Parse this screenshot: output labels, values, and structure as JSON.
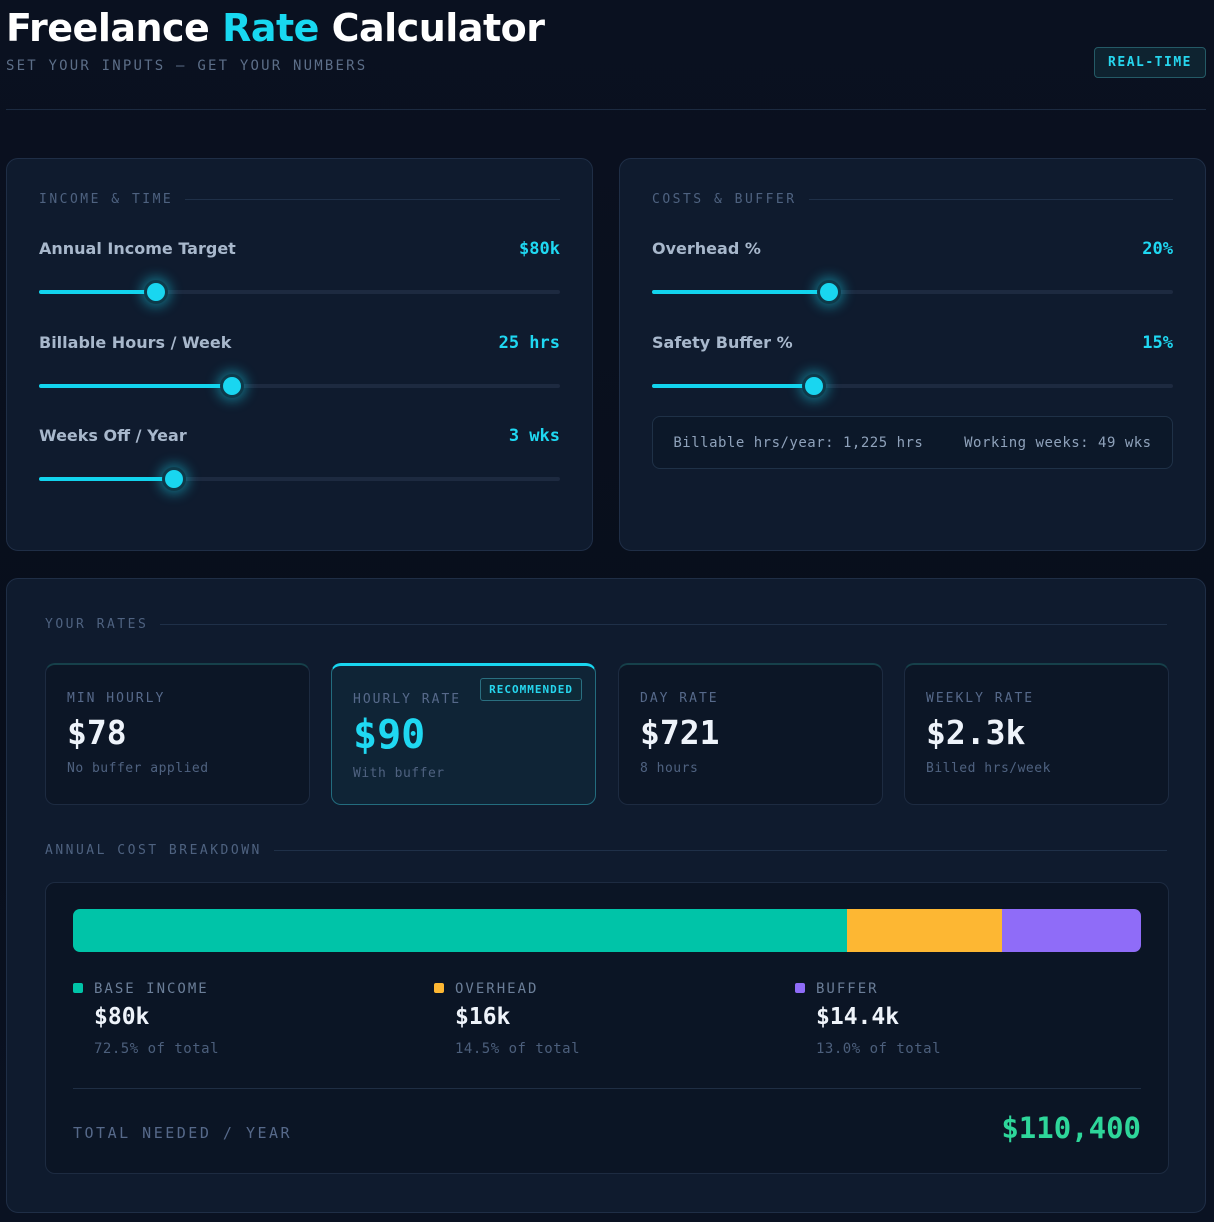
{
  "header": {
    "title_part1": "Freelance",
    "title_accent": "Rate",
    "title_part2": "Calculator",
    "subtitle": "SET YOUR INPUTS — GET YOUR NUMBERS",
    "badge": "REAL-TIME"
  },
  "income_panel": {
    "section_label": "INCOME & TIME",
    "sliders": [
      {
        "label": "Annual Income Target",
        "value": "$80k",
        "fill_fraction": 0.225
      },
      {
        "label": "Billable Hours / Week",
        "value": "25 hrs",
        "fill_fraction": 0.37
      },
      {
        "label": "Weeks Off / Year",
        "value": "3 wks",
        "fill_fraction": 0.26
      }
    ]
  },
  "costs_panel": {
    "section_label": "COSTS & BUFFER",
    "sliders": [
      {
        "label": "Overhead %",
        "value": "20%",
        "fill_fraction": 0.34
      },
      {
        "label": "Safety Buffer %",
        "value": "15%",
        "fill_fraction": 0.31
      }
    ],
    "stats": {
      "billable_hours": "Billable hrs/year: 1,225 hrs",
      "working_weeks": "Working weeks: 49 wks"
    }
  },
  "rates_panel": {
    "section_label": "YOUR RATES",
    "cards": [
      {
        "label": "MIN HOURLY",
        "value": "$78",
        "sub": "No buffer applied"
      },
      {
        "label": "HOURLY RATE",
        "value": "$90",
        "sub": "With buffer",
        "badge": "RECOMMENDED"
      },
      {
        "label": "DAY RATE",
        "value": "$721",
        "sub": "8 hours"
      },
      {
        "label": "WEEKLY RATE",
        "value": "$2.3k",
        "sub": "Billed hrs/week"
      }
    ],
    "breakdown_label": "ANNUAL COST BREAKDOWN",
    "breakdown": [
      {
        "name": "BASE INCOME",
        "amount": "$80k",
        "pct_text": "72.5% of total",
        "share": 72.5,
        "color": "#00c4a8"
      },
      {
        "name": "OVERHEAD",
        "amount": "$16k",
        "pct_text": "14.5% of total",
        "share": 14.5,
        "color": "#fdb733"
      },
      {
        "name": "BUFFER",
        "amount": "$14.4k",
        "pct_text": "13.0% of total",
        "share": 13.0,
        "color": "#8f6cf8"
      }
    ],
    "total_label": "TOTAL NEEDED / YEAR",
    "total_value": "$110,400"
  },
  "colors": {
    "accent": "#19d6f0",
    "total_green": "#2ed69a"
  }
}
